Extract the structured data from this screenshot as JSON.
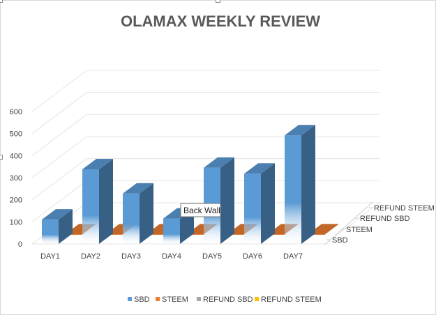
{
  "chart_data": {
    "type": "bar",
    "style": "3d-column",
    "title": "OLAMAX WEEKLY REVIEW",
    "categories": [
      "DAY1",
      "DAY2",
      "DAY3",
      "DAY4",
      "DAY5",
      "DAY6",
      "DAY7"
    ],
    "series": [
      {
        "name": "SBD",
        "color": "#5b9bd5",
        "values": [
          110,
          338,
          228,
          115,
          345,
          318,
          492
        ]
      },
      {
        "name": "STEEM",
        "color": "#ed7d31",
        "values": [
          2,
          2,
          2,
          2,
          2,
          2,
          2
        ]
      },
      {
        "name": "REFUND SBD",
        "color": "#a5a5a5",
        "values": [
          0,
          0,
          0,
          0,
          0,
          0,
          0
        ]
      },
      {
        "name": "REFUND STEEM",
        "color": "#ffc000",
        "values": [
          0,
          0,
          0,
          0,
          0,
          0,
          0
        ]
      }
    ],
    "depth_labels": [
      "SBD",
      "STEEM",
      "REFUND SBD",
      "REFUND STEEM"
    ],
    "yticks": [
      0,
      100,
      200,
      300,
      400,
      500,
      600
    ],
    "ylim": [
      0,
      600
    ],
    "xlabel": "",
    "ylabel": "",
    "grid": true,
    "legend_position": "bottom"
  },
  "tooltip": {
    "text": "Back Wall"
  }
}
